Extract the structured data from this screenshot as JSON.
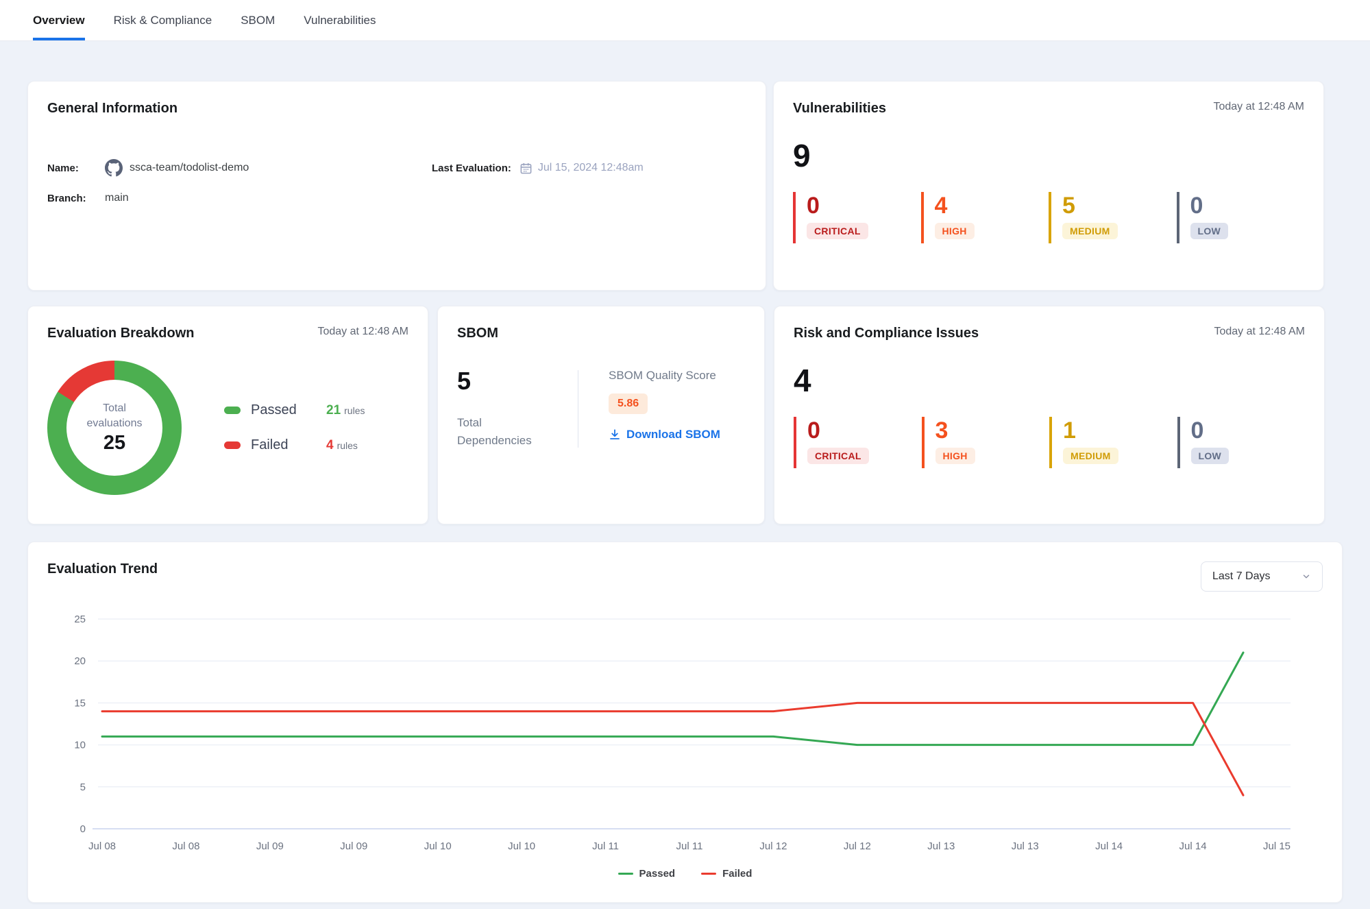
{
  "tabs": [
    {
      "label": "Overview",
      "active": true
    },
    {
      "label": "Risk & Compliance",
      "active": false
    },
    {
      "label": "SBOM",
      "active": false
    },
    {
      "label": "Vulnerabilities",
      "active": false
    }
  ],
  "colors": {
    "accent_blue": "#1a73e8",
    "passed_green": "#4caf50",
    "failed_red": "#e53935"
  },
  "cards": {
    "general_info": {
      "title": "General Information",
      "name_label": "Name:",
      "name_value": "ssca-team/todolist-demo",
      "branch_label": "Branch:",
      "branch_value": "main",
      "last_eval_label": "Last Evaluation:",
      "last_eval_value": "Jul 15, 2024 12:48am"
    },
    "vulnerabilities": {
      "title": "Vulnerabilities",
      "timestamp": "Today at 12:48 AM",
      "total": "9",
      "severities": [
        {
          "level": "CRITICAL",
          "count": "0",
          "color": "#b91c1c",
          "bar": "#e53535",
          "bg": "#fbe6e6"
        },
        {
          "level": "HIGH",
          "count": "4",
          "color": "#f4511e",
          "bar": "#f4511e",
          "bg": "#fdeee4"
        },
        {
          "level": "MEDIUM",
          "count": "5",
          "color": "#d09c06",
          "bar": "#d9a406",
          "bg": "#fcf4d8"
        },
        {
          "level": "LOW",
          "count": "0",
          "color": "#626e88",
          "bar": "#5c6576",
          "bg": "#dde1ed"
        }
      ]
    },
    "evaluation_breakdown": {
      "title": "Evaluation Breakdown",
      "timestamp": "Today at 12:48 AM",
      "center_label": "Total evaluations",
      "total": "25",
      "legend": [
        {
          "name": "Passed",
          "value": "21",
          "unit": "rules",
          "color": "#4caf50"
        },
        {
          "name": "Failed",
          "value": "4",
          "unit": "rules",
          "color": "#e53935"
        }
      ]
    },
    "sbom": {
      "title": "SBOM",
      "total": "5",
      "total_label": "Total Dependencies",
      "score_label": "SBOM Quality Score",
      "score": "5.86",
      "score_color": "#f4511e",
      "score_bg": "#fdeadb",
      "download_label": "Download SBOM"
    },
    "risk_compliance": {
      "title": "Risk and Compliance Issues",
      "timestamp": "Today at 12:48 AM",
      "total": "4",
      "severities": [
        {
          "level": "CRITICAL",
          "count": "0",
          "color": "#b91c1c",
          "bar": "#e53535",
          "bg": "#fbe6e6"
        },
        {
          "level": "HIGH",
          "count": "3",
          "color": "#f4511e",
          "bar": "#f4511e",
          "bg": "#fdeee4"
        },
        {
          "level": "MEDIUM",
          "count": "1",
          "color": "#d09c06",
          "bar": "#d9a406",
          "bg": "#fcf4d8"
        },
        {
          "level": "LOW",
          "count": "0",
          "color": "#626e88",
          "bar": "#5c6576",
          "bg": "#dde1ed"
        }
      ]
    },
    "evaluation_trend": {
      "title": "Evaluation Trend",
      "range_selector": "Last 7 Days"
    }
  },
  "chart_data": [
    {
      "type": "pie",
      "subtype": "donut",
      "title": "Evaluation Breakdown",
      "slices": [
        {
          "label": "Passed",
          "value": 21,
          "color": "#4caf50"
        },
        {
          "label": "Failed",
          "value": 4,
          "color": "#e53935"
        }
      ],
      "center_text": [
        "Total evaluations",
        "25"
      ]
    },
    {
      "type": "line",
      "title": "Evaluation Trend",
      "x_labels": [
        "Jul 08",
        "Jul 08",
        "Jul 09",
        "Jul 09",
        "Jul 10",
        "Jul 10",
        "Jul 11",
        "Jul 11",
        "Jul 12",
        "Jul 12",
        "Jul 13",
        "Jul 13",
        "Jul 14",
        "Jul 14",
        "Jul 15"
      ],
      "ylim": [
        0,
        25
      ],
      "yticks": [
        0,
        5,
        10,
        15,
        20,
        25
      ],
      "grid": true,
      "legend_position": "bottom",
      "series": [
        {
          "name": "Passed",
          "color": "#34a853",
          "points": [
            [
              0,
              11
            ],
            [
              1,
              11
            ],
            [
              2,
              11
            ],
            [
              3,
              11
            ],
            [
              4,
              11
            ],
            [
              5,
              11
            ],
            [
              6,
              11
            ],
            [
              7,
              11
            ],
            [
              8,
              11
            ],
            [
              9,
              10
            ],
            [
              10,
              10
            ],
            [
              11,
              10
            ],
            [
              12,
              10
            ],
            [
              13,
              10
            ],
            [
              13.6,
              21
            ]
          ]
        },
        {
          "name": "Failed",
          "color": "#ea3b2e",
          "points": [
            [
              0,
              14
            ],
            [
              1,
              14
            ],
            [
              2,
              14
            ],
            [
              3,
              14
            ],
            [
              4,
              14
            ],
            [
              5,
              14
            ],
            [
              6,
              14
            ],
            [
              7,
              14
            ],
            [
              8,
              14
            ],
            [
              9,
              15
            ],
            [
              10,
              15
            ],
            [
              11,
              15
            ],
            [
              12,
              15
            ],
            [
              13,
              15
            ],
            [
              13.6,
              4
            ]
          ]
        }
      ]
    }
  ]
}
